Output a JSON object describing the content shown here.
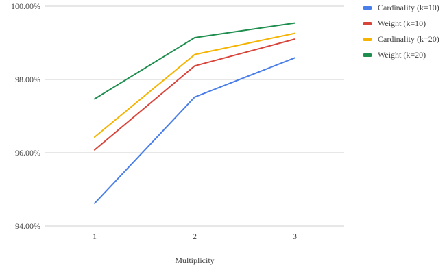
{
  "chart_data": {
    "type": "line",
    "title": "",
    "xlabel": "Multiplicity",
    "ylabel": "",
    "categories": [
      "1",
      "2",
      "3"
    ],
    "ylim": [
      94.0,
      100.0
    ],
    "yticks": [
      94.0,
      96.0,
      98.0,
      100.0
    ],
    "ytick_labels": [
      "94.00%",
      "96.00%",
      "98.00%",
      "100.00%"
    ],
    "grid": true,
    "legend_position": "top-right",
    "series": [
      {
        "name": "Cardinality (k=10)",
        "color": "#4a7ee8",
        "values": [
          94.62,
          97.52,
          98.59
        ]
      },
      {
        "name": "Weight (k=10)",
        "color": "#d9443a",
        "values": [
          96.08,
          98.37,
          99.1
        ]
      },
      {
        "name": "Cardinality (k=20)",
        "color": "#f4b400",
        "values": [
          96.43,
          98.68,
          99.26
        ]
      },
      {
        "name": "Weight (k=20)",
        "color": "#1e8e4e",
        "values": [
          97.47,
          99.14,
          99.54
        ]
      }
    ]
  }
}
